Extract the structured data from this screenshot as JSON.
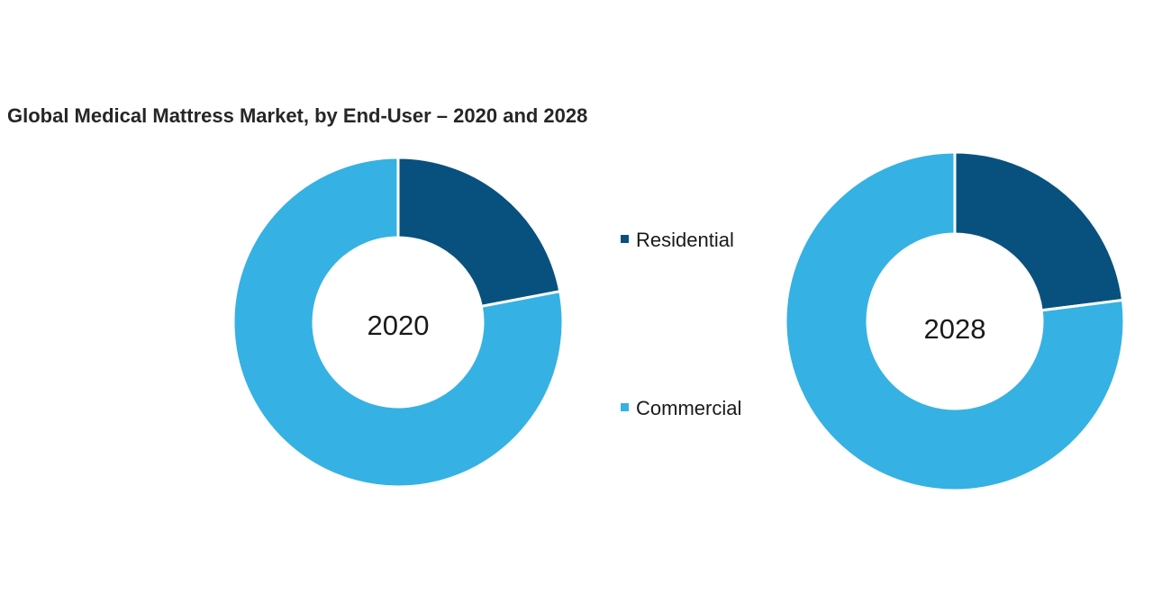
{
  "chart_data": {
    "type": "pie",
    "title": "Global Medical Mattress Market, by End-User – 2020 and 2028",
    "categories": [
      "Residential",
      "Commercial"
    ],
    "colors": [
      "#08517f",
      "#36b1e3"
    ],
    "series": [
      {
        "name": "2020",
        "values": [
          22,
          78
        ]
      },
      {
        "name": "2028",
        "values": [
          23,
          77
        ]
      }
    ]
  }
}
